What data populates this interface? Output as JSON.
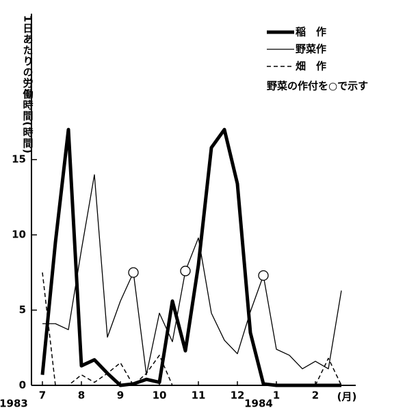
{
  "chart_data": {
    "type": "line",
    "y_label": "1日あたりの労働時間(時間)",
    "categories": [
      "7",
      null,
      null,
      "8",
      null,
      null,
      "9",
      null,
      null,
      "10",
      null,
      null,
      "11",
      null,
      null,
      "12",
      null,
      null,
      "1",
      null,
      null,
      "2",
      null,
      null
    ],
    "year_labels": [
      "1983",
      "1984"
    ],
    "x_unit": "(月)",
    "ylim": [
      0,
      24.7
    ],
    "yticks": [
      0,
      5,
      10,
      15
    ],
    "legend_note": "野菜の作付を○で示す",
    "series": [
      {
        "name": "稲　作",
        "color": "#000",
        "style": "thick",
        "values": [
          0.7,
          9.5,
          17,
          1.3,
          1.7,
          0.8,
          0,
          0.1,
          0.4,
          0.2,
          5.6,
          2.3,
          8,
          15.8,
          17,
          13.4,
          3.5,
          0.1,
          0,
          0,
          0,
          0,
          0,
          0
        ]
      },
      {
        "name": "野菜作",
        "color": "#000",
        "style": "thin",
        "values": [
          4.1,
          4.1,
          3.7,
          9,
          14,
          3.2,
          5.6,
          7.5,
          0.7,
          4.8,
          2.9,
          7.6,
          9.8,
          4.8,
          3,
          2.1,
          4.9,
          7.3,
          2.4,
          2,
          1.1,
          1.6,
          1.1,
          6.3
        ],
        "marked": [
          7,
          11,
          17
        ]
      },
      {
        "name": "畑　作",
        "color": "#000",
        "style": "dashed",
        "values": [
          7.5,
          0,
          0,
          0.7,
          0.2,
          0.8,
          1.5,
          0,
          0.8,
          2,
          0,
          null,
          null,
          null,
          null,
          null,
          null,
          null,
          null,
          null,
          null,
          0,
          1.8,
          0
        ]
      }
    ]
  }
}
